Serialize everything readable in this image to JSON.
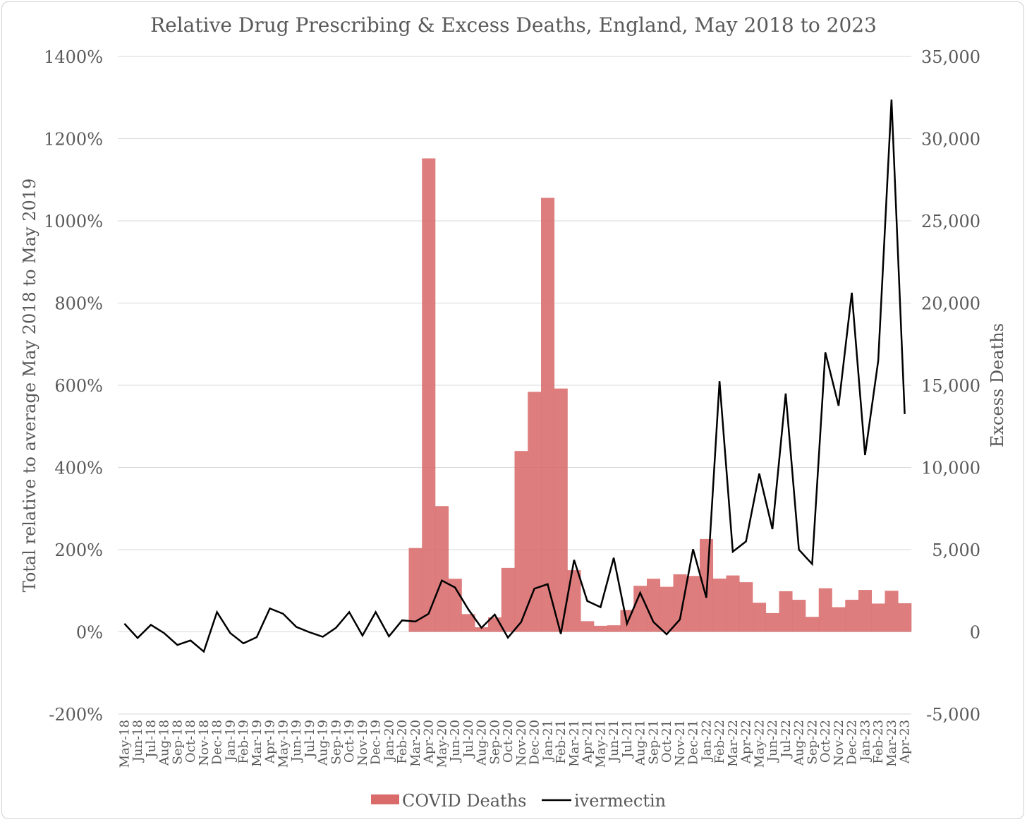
{
  "chart_data": {
    "type": "bar+line",
    "title": "Relative Drug Prescribing & Excess Deaths, England, May 2018 to 2023",
    "ylabel_left": "Total relative to average May 2018 to May 2019",
    "ylabel_right": "Excess Deaths",
    "ylim_left": [
      -200,
      1400
    ],
    "ylim_right": [
      -5000,
      35000
    ],
    "yticks_left": [
      "-200%",
      "0%",
      "200%",
      "400%",
      "600%",
      "800%",
      "1000%",
      "1200%",
      "1400%"
    ],
    "yticks_right": [
      "-5,000",
      "0",
      "5,000",
      "10,000",
      "15,000",
      "20,000",
      "25,000",
      "30,000",
      "35,000"
    ],
    "grid": true,
    "legend_position": "bottom",
    "categories": [
      "May-18",
      "Jun-18",
      "Jul-18",
      "Aug-18",
      "Sep-18",
      "Oct-18",
      "Nov-18",
      "Dec-18",
      "Jan-19",
      "Feb-19",
      "Mar-19",
      "Apr-19",
      "May-19",
      "Jun-19",
      "Jul-19",
      "Aug-19",
      "Sep-19",
      "Oct-19",
      "Nov-19",
      "Dec-19",
      "Jan-20",
      "Feb-20",
      "Mar-20",
      "Apr-20",
      "May-20",
      "Jun-20",
      "Jul-20",
      "Aug-20",
      "Sep-20",
      "Oct-20",
      "Nov-20",
      "Dec-20",
      "Jan-21",
      "Feb-21",
      "Mar-21",
      "Apr-21",
      "May-21",
      "Jun-21",
      "Jul-21",
      "Aug-21",
      "Sep-21",
      "Oct-21",
      "Nov-21",
      "Dec-21",
      "Jan-22",
      "Feb-22",
      "Mar-22",
      "Apr-22",
      "May-22",
      "Jun-22",
      "Jul-22",
      "Aug-22",
      "Sep-22",
      "Oct-22",
      "Nov-22",
      "Dec-22",
      "Jan-23",
      "Feb-23",
      "Mar-23",
      "Apr-23"
    ],
    "series": [
      {
        "name": "COVID Deaths",
        "type": "bar",
        "axis": "right",
        "color": "#d96b6b",
        "values": [
          0,
          0,
          0,
          0,
          0,
          0,
          0,
          0,
          0,
          0,
          0,
          0,
          0,
          0,
          0,
          0,
          0,
          0,
          0,
          0,
          0,
          0,
          5100,
          28800,
          7650,
          3230,
          1080,
          280,
          880,
          3890,
          11000,
          14600,
          26400,
          14800,
          3750,
          650,
          370,
          400,
          1330,
          2800,
          3230,
          2740,
          3500,
          3400,
          5650,
          3240,
          3430,
          3020,
          1770,
          1140,
          2470,
          1950,
          910,
          2650,
          1500,
          1950,
          2550,
          1720,
          2500,
          1740
        ]
      },
      {
        "name": "ivermectin",
        "type": "line",
        "axis": "left",
        "color": "#000000",
        "values": [
          20,
          -15,
          17,
          -3,
          -32,
          -21,
          -48,
          48,
          -3,
          -28,
          -13,
          57,
          44,
          12,
          -1,
          -12,
          10,
          48,
          -9,
          48,
          -11,
          28,
          25,
          44,
          125,
          108,
          55,
          10,
          42,
          -14,
          24,
          105,
          116,
          -5,
          175,
          75,
          60,
          180,
          20,
          95,
          24,
          -6,
          30,
          201,
          83,
          610,
          195,
          220,
          385,
          250,
          580,
          200,
          165,
          680,
          550,
          825,
          430,
          660,
          1295,
          530
        ]
      }
    ]
  }
}
